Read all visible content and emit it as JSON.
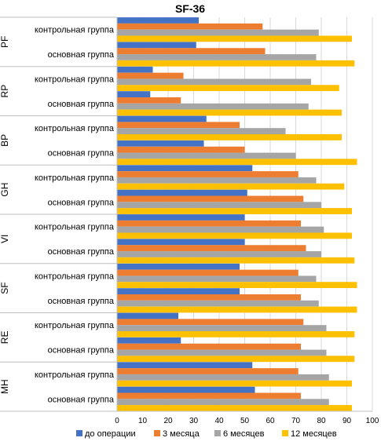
{
  "chart_data": {
    "type": "bar",
    "orientation": "horizontal",
    "title": "SF-36",
    "xlim": [
      0,
      100
    ],
    "x_ticks": [
      0,
      10,
      20,
      30,
      40,
      50,
      60,
      70,
      80,
      90,
      100
    ],
    "grid": "vertical",
    "legend_position": "bottom",
    "groups": [
      "PF",
      "RP",
      "BP",
      "GH",
      "VI",
      "SF",
      "RE",
      "MH"
    ],
    "subcategories": [
      "контрольная группа",
      "основная группа"
    ],
    "series": [
      {
        "name": "до операции",
        "color": "#4472C4",
        "values": [
          [
            32,
            31
          ],
          [
            14,
            13
          ],
          [
            35,
            34
          ],
          [
            53,
            51
          ],
          [
            50,
            50
          ],
          [
            48,
            48
          ],
          [
            24,
            25
          ],
          [
            53,
            54
          ]
        ]
      },
      {
        "name": "3 месяца",
        "color": "#ED7D31",
        "values": [
          [
            57,
            58
          ],
          [
            26,
            25
          ],
          [
            48,
            50
          ],
          [
            71,
            73
          ],
          [
            72,
            74
          ],
          [
            71,
            72
          ],
          [
            73,
            72
          ],
          [
            71,
            72
          ]
        ]
      },
      {
        "name": "6 месяцев",
        "color": "#A5A5A5",
        "values": [
          [
            79,
            78
          ],
          [
            76,
            75
          ],
          [
            66,
            70
          ],
          [
            78,
            80
          ],
          [
            81,
            80
          ],
          [
            78,
            79
          ],
          [
            82,
            82
          ],
          [
            83,
            83
          ]
        ]
      },
      {
        "name": "12 месяцев",
        "color": "#FFC000",
        "values": [
          [
            92,
            93
          ],
          [
            87,
            88
          ],
          [
            88,
            94
          ],
          [
            89,
            92
          ],
          [
            92,
            93
          ],
          [
            94,
            94
          ],
          [
            93,
            93
          ],
          [
            92,
            92
          ]
        ]
      }
    ]
  }
}
